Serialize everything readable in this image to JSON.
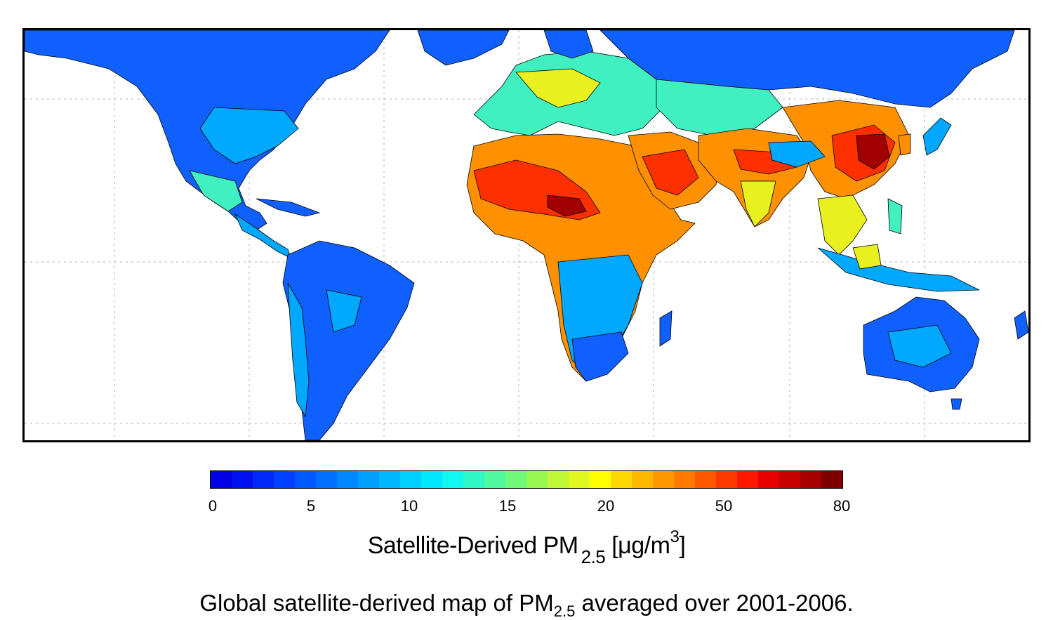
{
  "colorbar": {
    "ticks": [
      "0",
      "5",
      "10",
      "15",
      "20",
      "50",
      "80"
    ],
    "colors": [
      "#0000e6",
      "#0010f0",
      "#0028f8",
      "#0040ff",
      "#0058ff",
      "#0070ff",
      "#0088ff",
      "#00a0ff",
      "#00b8ff",
      "#00d0ff",
      "#00e8ff",
      "#10f8f0",
      "#30f8c8",
      "#50f8a0",
      "#70f878",
      "#98f850",
      "#c0f838",
      "#e0f820",
      "#ffff00",
      "#ffd800",
      "#ffb800",
      "#ff9800",
      "#ff7800",
      "#ff5800",
      "#ff3800",
      "#ff1800",
      "#e80000",
      "#c80000",
      "#a80000",
      "#800000"
    ],
    "title_main": "Satellite-Derived PM",
    "title_sub": "2.5",
    "title_unit_open": "[",
    "title_mu": "μ",
    "title_unit": "g/m",
    "title_sup": "3",
    "title_unit_close": "]"
  },
  "caption": {
    "text_before": "Global satellite-derived map of PM",
    "sub": "2.5",
    "text_after": " averaged over 2001-2006."
  },
  "map": {
    "colors": {
      "ocean": "#ffffff",
      "low": "#1060ff",
      "lowmid": "#00a8ff",
      "mid": "#40f0c0",
      "midhigh": "#e8f020",
      "high": "#ff9000",
      "veryhigh": "#ff3000",
      "extreme": "#a00000",
      "border": "#000000",
      "grid": "#b0b0b0"
    }
  }
}
